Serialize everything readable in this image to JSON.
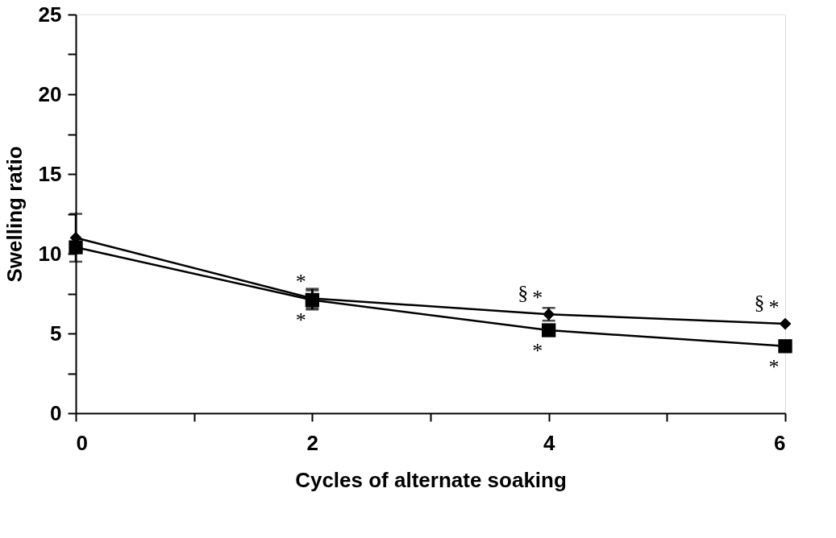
{
  "chart_data": {
    "type": "line",
    "xlabel": "Cycles of alternate soaking",
    "ylabel": "Swelling ratio",
    "x": [
      0,
      2,
      4,
      6
    ],
    "series": [
      {
        "color": "#000000",
        "marker": "diamond",
        "values": [
          11.0,
          7.2,
          6.2,
          5.6
        ],
        "errors": [
          1.5,
          0.6,
          0.4,
          null
        ]
      },
      {
        "color": "#000000",
        "marker": "square",
        "values": [
          10.4,
          7.1,
          5.2,
          4.2
        ],
        "errors": [
          null,
          0.6,
          null,
          null
        ]
      }
    ],
    "xlim": [
      0,
      6
    ],
    "ylim": [
      0,
      25
    ],
    "xticks": [
      0,
      {
        "value": 1,
        "label": null
      },
      2,
      {
        "value": 3,
        "label": null
      },
      4,
      {
        "value": 5,
        "label": null
      },
      6
    ],
    "yticks": [
      0,
      {
        "value": 2.5,
        "label": null
      },
      5,
      {
        "value": 7.5,
        "label": null
      },
      10,
      {
        "value": 12.5,
        "label": null
      },
      15,
      {
        "value": 17.5,
        "label": null
      },
      20,
      {
        "value": 22.5,
        "label": null
      },
      25
    ],
    "annotations": [
      {
        "text": "*",
        "x": 2,
        "y": 7.2
      },
      {
        "text": "*",
        "x": 2,
        "y": 7.1
      },
      {
        "text": "§",
        "x": 4,
        "y": 6.2
      },
      {
        "text": "*",
        "x": 4,
        "y": 6.2
      },
      {
        "text": "*",
        "x": 4,
        "y": 5.2
      },
      {
        "text": "§",
        "x": 6,
        "y": 5.6
      },
      {
        "text": "*",
        "x": 6,
        "y": 5.6
      },
      {
        "text": "*",
        "x": 6,
        "y": 4.2
      }
    ],
    "line_style": "solid"
  }
}
